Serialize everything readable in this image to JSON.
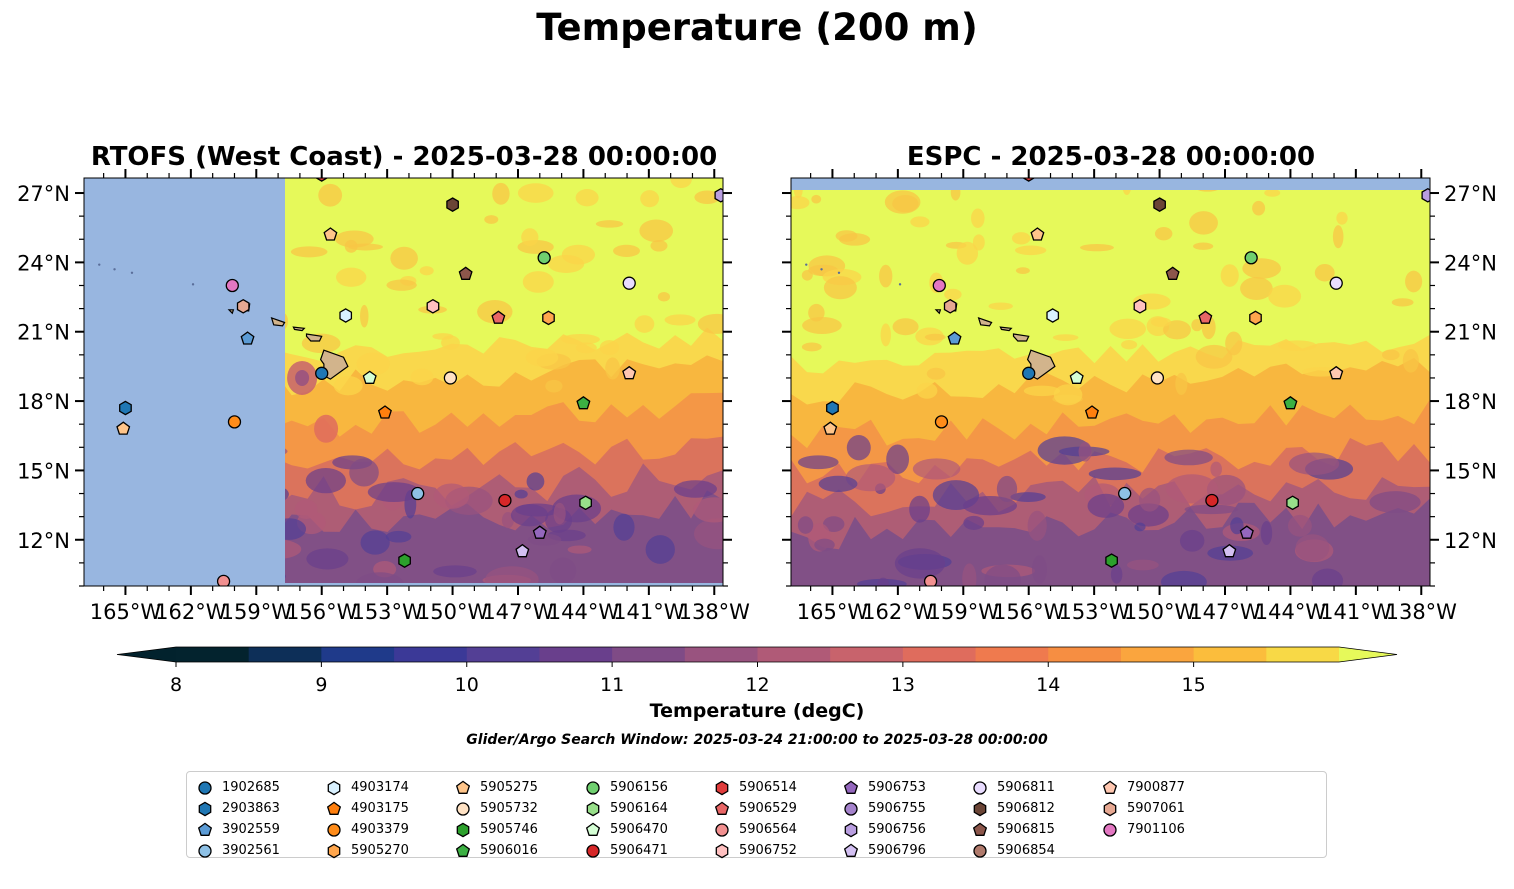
{
  "figure": {
    "title": "Temperature (200 m)",
    "panels": [
      {
        "title": "RTOFS (West Coast) - 2025-03-28 00:00:00"
      },
      {
        "title": "ESPC - 2025-03-28 00:00:00"
      }
    ],
    "lon_ticks": [
      "165°W",
      "162°W",
      "159°W",
      "156°W",
      "153°W",
      "150°W",
      "147°W",
      "144°W",
      "141°W",
      "138°W"
    ],
    "lat_ticks": [
      "27°N",
      "24°N",
      "21°N",
      "18°N",
      "15°N",
      "12°N"
    ],
    "colorbar": {
      "label": "Temperature (degC)",
      "ticks": [
        "8",
        "9",
        "10",
        "11",
        "12",
        "13",
        "14",
        "15"
      ],
      "colors": [
        "#03232e",
        "#0d2f58",
        "#1f3a8a",
        "#3b3997",
        "#533f95",
        "#693f8c",
        "#7f4b86",
        "#99537f",
        "#b05a77",
        "#c8636c",
        "#df6c5d",
        "#ef7a4e",
        "#f68e42",
        "#faa53e",
        "#fbbd3c",
        "#f8d946"
      ],
      "over_color": "#e6f95a",
      "under_color": "#02222d"
    },
    "search_window": "Glider/Argo Search Window: 2025-03-24 21:00:00 to 2025-03-28 00:00:00",
    "colors": {
      "ocean_no_data": "#98b6e0",
      "land": "#d2b48c",
      "warm_fill": "#e6f95a"
    },
    "legend": [
      {
        "id": "1902685",
        "marker": "circle",
        "color": "#1f77b4"
      },
      {
        "id": "2903863",
        "marker": "hexagon",
        "color": "#1f77b4"
      },
      {
        "id": "3902559",
        "marker": "pentagon",
        "color": "#5b9bd5"
      },
      {
        "id": "3902561",
        "marker": "circle",
        "color": "#8ec1e6"
      },
      {
        "id": "4903174",
        "marker": "hexagon",
        "color": "#d9f1ff"
      },
      {
        "id": "4903175",
        "marker": "pentagon",
        "color": "#ff7f0e"
      },
      {
        "id": "4903379",
        "marker": "circle",
        "color": "#ff8c1a"
      },
      {
        "id": "5905270",
        "marker": "hexagon",
        "color": "#ffa64d"
      },
      {
        "id": "5905275",
        "marker": "pentagon",
        "color": "#ffc58a"
      },
      {
        "id": "5905732",
        "marker": "circle",
        "color": "#ffe2c4"
      },
      {
        "id": "5905746",
        "marker": "hexagon",
        "color": "#2ca02c"
      },
      {
        "id": "5906016",
        "marker": "pentagon",
        "color": "#3cb043"
      },
      {
        "id": "5906156",
        "marker": "circle",
        "color": "#6fcf6f"
      },
      {
        "id": "5906164",
        "marker": "hexagon",
        "color": "#98df8a"
      },
      {
        "id": "5906470",
        "marker": "pentagon",
        "color": "#d5ffd5"
      },
      {
        "id": "5906471",
        "marker": "circle",
        "color": "#d62728"
      },
      {
        "id": "5906514",
        "marker": "hexagon",
        "color": "#e03c3c"
      },
      {
        "id": "5906529",
        "marker": "pentagon",
        "color": "#e86666"
      },
      {
        "id": "5906564",
        "marker": "circle",
        "color": "#f29090"
      },
      {
        "id": "5906752",
        "marker": "hexagon",
        "color": "#ffc0c0"
      },
      {
        "id": "5906753",
        "marker": "pentagon",
        "color": "#9467bd"
      },
      {
        "id": "5906755",
        "marker": "circle",
        "color": "#a583cc"
      },
      {
        "id": "5906756",
        "marker": "hexagon",
        "color": "#b99ee0"
      },
      {
        "id": "5906796",
        "marker": "pentagon",
        "color": "#d3c0f2"
      },
      {
        "id": "5906811",
        "marker": "circle",
        "color": "#e9dcff"
      },
      {
        "id": "5906812",
        "marker": "hexagon",
        "color": "#6b4536"
      },
      {
        "id": "5906815",
        "marker": "pentagon",
        "color": "#8c564b"
      },
      {
        "id": "5906854",
        "marker": "circle",
        "color": "#b07a6c"
      },
      {
        "id": "7900877",
        "marker": "pentagon",
        "color": "#ffc7b0"
      },
      {
        "id": "5907061",
        "marker": "hexagon",
        "color": "#e6a892"
      },
      {
        "id": "7901106",
        "marker": "circle",
        "color": "#e377c2"
      }
    ],
    "floats": [
      {
        "id": "1902685",
        "lon": -156.0,
        "lat": 19.2
      },
      {
        "id": "2903863",
        "lon": -165.0,
        "lat": 17.7
      },
      {
        "id": "3902559",
        "lon": -159.4,
        "lat": 20.7
      },
      {
        "id": "3902561",
        "lon": -151.6,
        "lat": 14.0
      },
      {
        "id": "4903174",
        "lon": -154.9,
        "lat": 21.7
      },
      {
        "id": "4903175",
        "lon": -153.1,
        "lat": 17.5
      },
      {
        "id": "4903379",
        "lon": -160.0,
        "lat": 17.1
      },
      {
        "id": "5905270",
        "lon": -145.6,
        "lat": 21.6
      },
      {
        "id": "5905275",
        "lon": -165.1,
        "lat": 16.8
      },
      {
        "id": "5905732",
        "lon": -150.1,
        "lat": 19.0
      },
      {
        "id": "5905746",
        "lon": -152.2,
        "lat": 11.1
      },
      {
        "id": "5906016",
        "lon": -144.0,
        "lat": 17.9
      },
      {
        "id": "5906156",
        "lon": -145.8,
        "lat": 24.2
      },
      {
        "id": "5906164",
        "lon": -143.9,
        "lat": 13.6
      },
      {
        "id": "5906470",
        "lon": -153.8,
        "lat": 19.0
      },
      {
        "id": "5906471",
        "lon": -147.6,
        "lat": 13.7
      },
      {
        "id": "5906514",
        "lon": -156.0,
        "lat": 27.8
      },
      {
        "id": "5906529",
        "lon": -147.9,
        "lat": 21.6
      },
      {
        "id": "5906564",
        "lon": -160.5,
        "lat": 10.2
      },
      {
        "id": "5906752",
        "lon": -150.9,
        "lat": 22.1
      },
      {
        "id": "5906753",
        "lon": -146.0,
        "lat": 12.3
      },
      {
        "id": "5906756",
        "lon": -137.7,
        "lat": 26.9
      },
      {
        "id": "5906796",
        "lon": -146.8,
        "lat": 11.5
      },
      {
        "id": "5906811",
        "lon": -141.9,
        "lat": 23.1
      },
      {
        "id": "5906812",
        "lon": -150.0,
        "lat": 26.5
      },
      {
        "id": "5906815",
        "lon": -149.4,
        "lat": 23.5
      },
      {
        "id": "7900877",
        "lon": -141.9,
        "lat": 19.2
      },
      {
        "id": "5907061",
        "lon": -159.6,
        "lat": 22.1
      },
      {
        "id": "7901106",
        "lon": -160.1,
        "lat": 23.0
      },
      {
        "id": "5905275",
        "lon": -155.6,
        "lat": 25.2
      }
    ]
  }
}
